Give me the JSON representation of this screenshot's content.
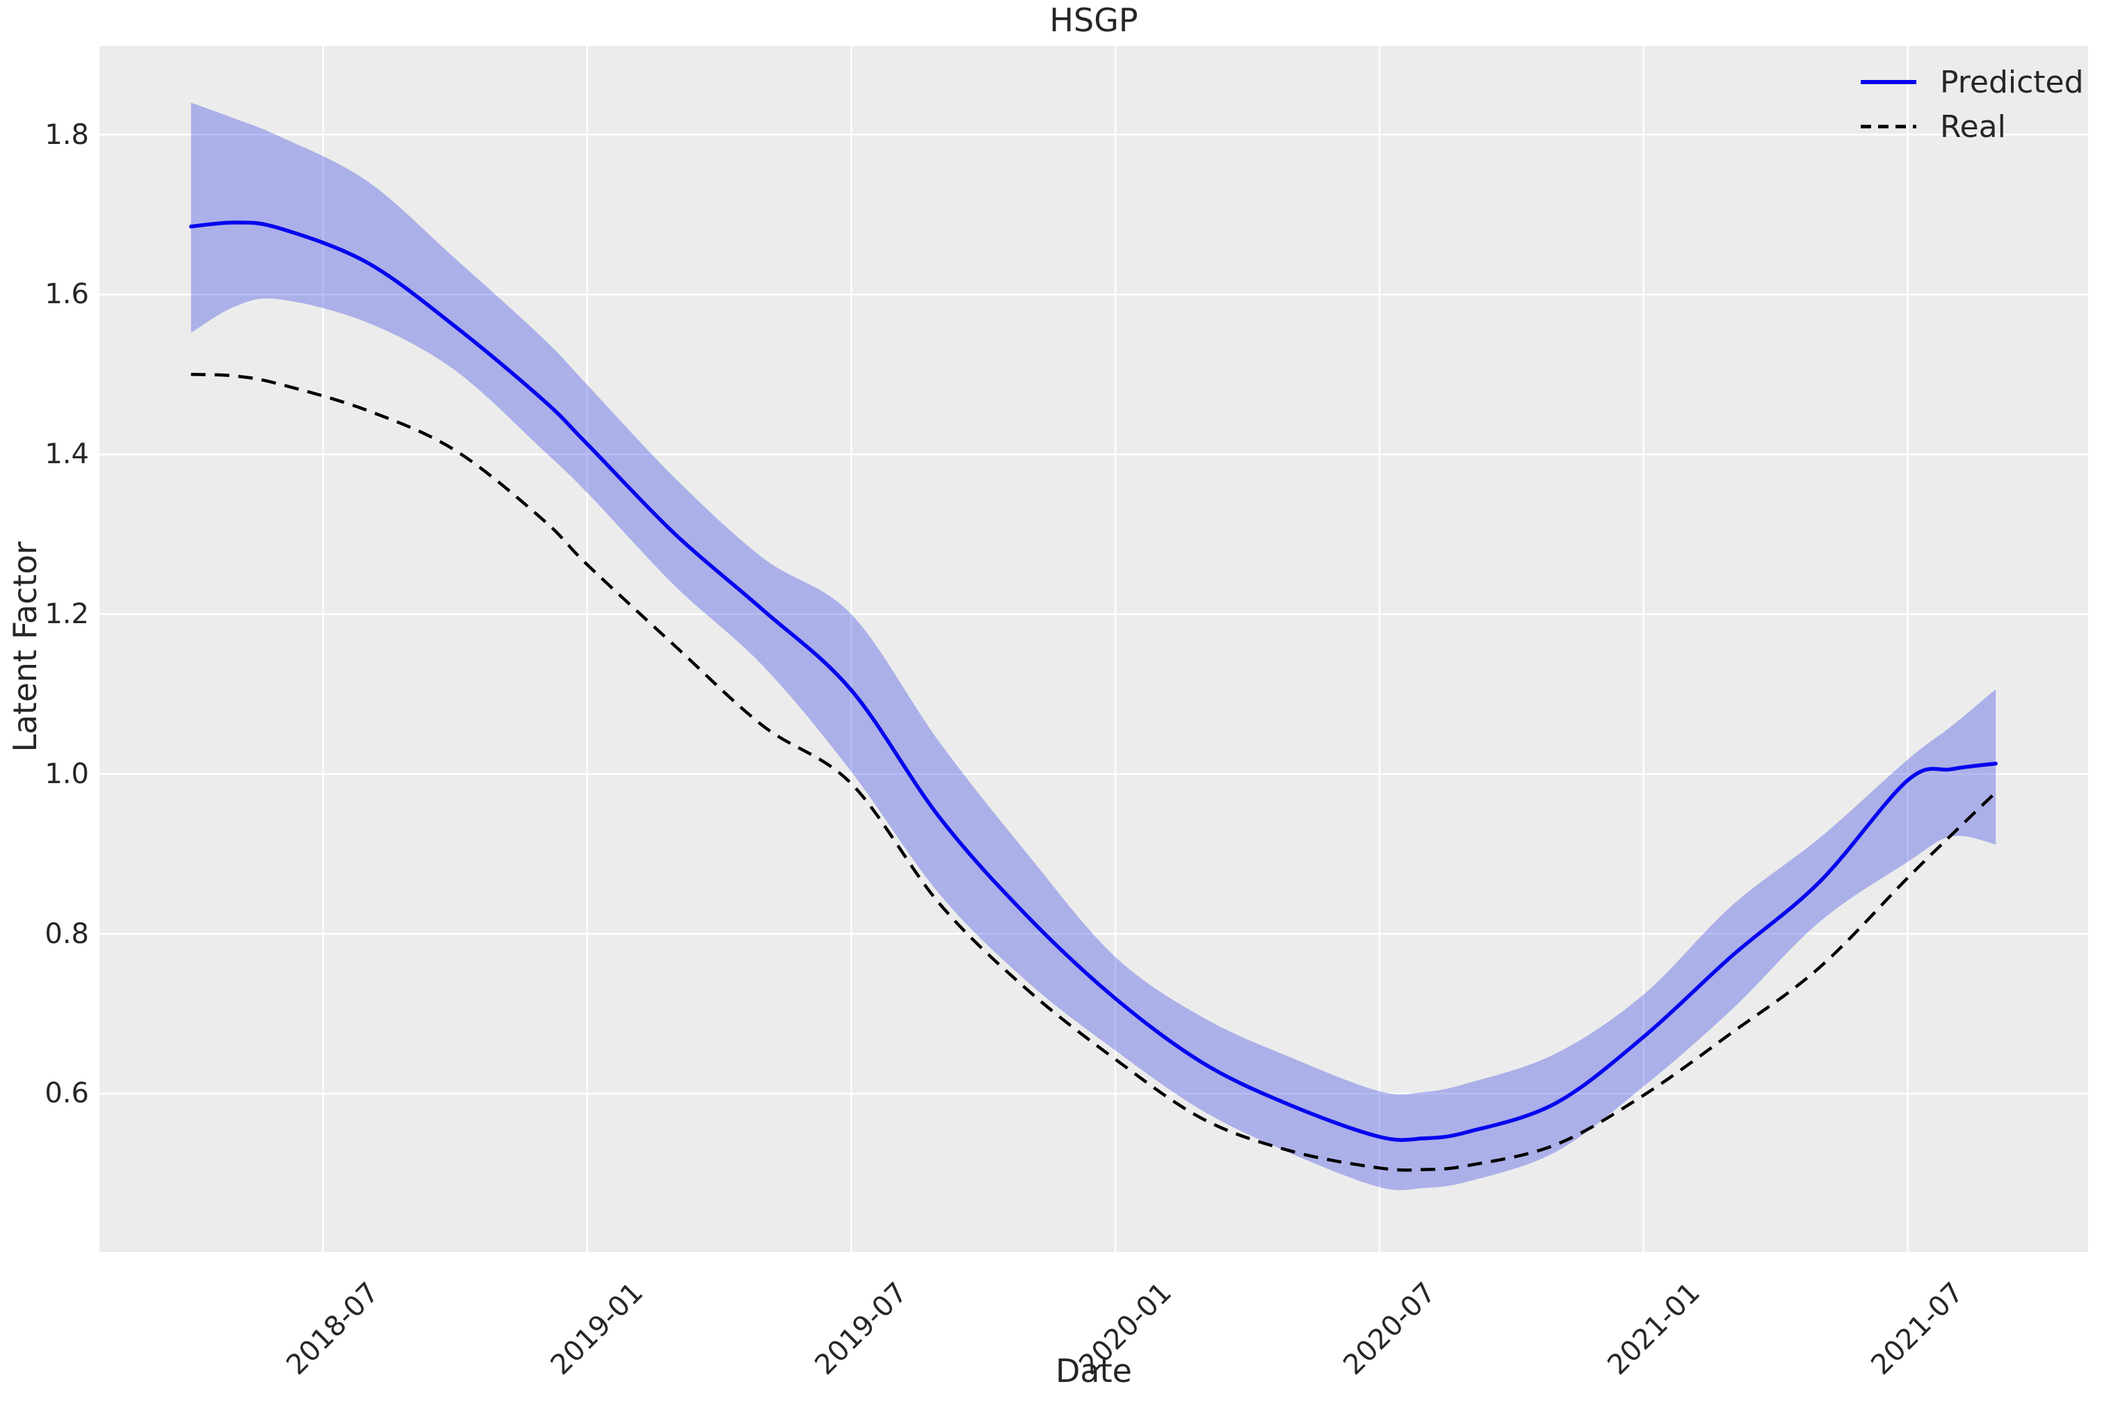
{
  "colors": {
    "figure_bg": "#ffffff",
    "axes_bg": "#ececec",
    "grid": "#ffffff",
    "predicted": "#0505ee",
    "band_fill": "#2233e0",
    "band_opacity": 0.32,
    "real": "#000000",
    "text": "#262626"
  },
  "chart_data": {
    "type": "line",
    "title": "HSGP",
    "xlabel": "Date",
    "ylabel": "Latent Factor",
    "grid": true,
    "legend_position": "upper right",
    "x_ticks": [
      "2018-07",
      "2019-01",
      "2019-07",
      "2020-01",
      "2020-07",
      "2021-01",
      "2021-07"
    ],
    "y_ticks": [
      1.8,
      1.6,
      1.4,
      1.2,
      1.0,
      0.8,
      0.6
    ],
    "xlim": [
      "2018-01-29",
      "2021-11-04"
    ],
    "ylim": [
      0.402,
      1.911
    ],
    "x": [
      "2018-04",
      "2018-05",
      "2018-06",
      "2018-08",
      "2018-10",
      "2018-12",
      "2019-01",
      "2019-03",
      "2019-05",
      "2019-07",
      "2019-09",
      "2019-11",
      "2020-01",
      "2020-03",
      "2020-05",
      "2020-07",
      "2020-08",
      "2020-09",
      "2020-11",
      "2021-01",
      "2021-03",
      "2021-05",
      "2021-07",
      "2021-08",
      "2021-09"
    ],
    "series": [
      {
        "name": "Predicted",
        "style": "solid",
        "color": "blue",
        "values": [
          1.685,
          1.69,
          1.683,
          1.64,
          1.56,
          1.468,
          1.413,
          1.3,
          1.205,
          1.105,
          0.946,
          0.822,
          0.719,
          0.638,
          0.585,
          0.546,
          0.544,
          0.552,
          0.588,
          0.671,
          0.772,
          0.865,
          0.992,
          1.006,
          1.013
        ],
        "band_lower": [
          1.552,
          1.585,
          1.594,
          1.565,
          1.505,
          1.405,
          1.352,
          1.235,
          1.135,
          1.003,
          0.85,
          0.74,
          0.654,
          0.578,
          0.525,
          0.483,
          0.482,
          0.49,
          0.527,
          0.609,
          0.705,
          0.815,
          0.89,
          0.922,
          0.912
        ],
        "band_upper": [
          1.84,
          1.82,
          1.798,
          1.742,
          1.645,
          1.545,
          1.487,
          1.37,
          1.27,
          1.2,
          1.04,
          0.9,
          0.771,
          0.695,
          0.645,
          0.603,
          0.602,
          0.613,
          0.65,
          0.724,
          0.835,
          0.92,
          1.018,
          1.06,
          1.106
        ]
      },
      {
        "name": "Real",
        "style": "dashed",
        "color": "black",
        "values": [
          1.5,
          1.498,
          1.488,
          1.455,
          1.405,
          1.318,
          1.262,
          1.16,
          1.06,
          0.988,
          0.838,
          0.73,
          0.643,
          0.568,
          0.528,
          0.507,
          0.505,
          0.51,
          0.536,
          0.598,
          0.676,
          0.758,
          0.87,
          0.924,
          0.977
        ]
      }
    ]
  }
}
